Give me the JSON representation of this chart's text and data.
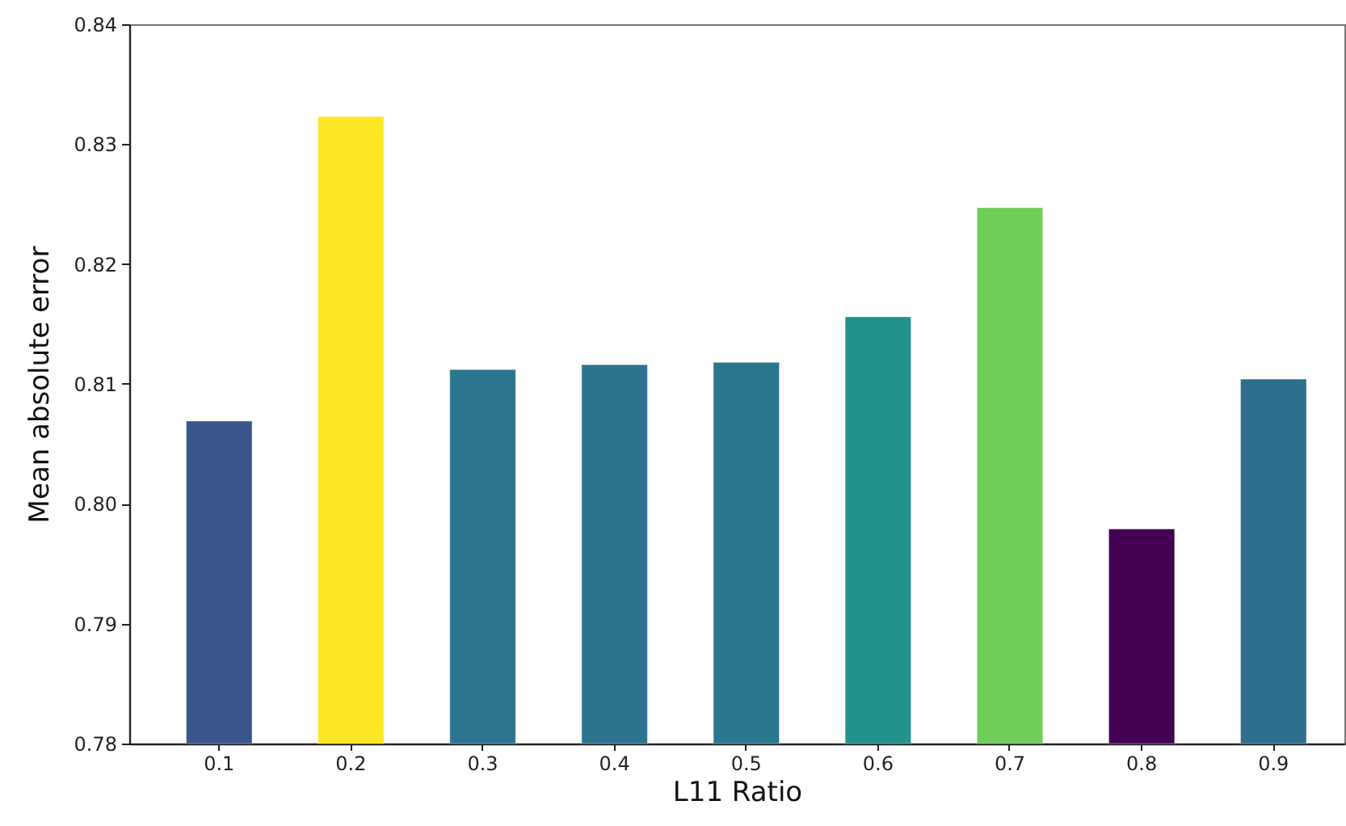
{
  "chart_data": {
    "type": "bar",
    "xlabel": "L11 Ratio",
    "ylabel": "Mean absolute error",
    "categories": [
      "0.1",
      "0.2",
      "0.3",
      "0.4",
      "0.5",
      "0.6",
      "0.7",
      "0.8",
      "0.9"
    ],
    "values": [
      0.8069,
      0.8323,
      0.8112,
      0.8116,
      0.8118,
      0.8156,
      0.8247,
      0.7979,
      0.8104
    ],
    "colors": [
      "#3b568b",
      "#fde725",
      "#2c758e",
      "#2c748e",
      "#29788e",
      "#21928c",
      "#6ece58",
      "#440154",
      "#2e6f8e"
    ],
    "ylim": [
      0.78,
      0.84
    ],
    "yticks": [
      0.78,
      0.79,
      {
        "value": 0.8,
        "label": "0.80"
      },
      0.81,
      0.82,
      0.83,
      0.84
    ],
    "grid": false
  }
}
